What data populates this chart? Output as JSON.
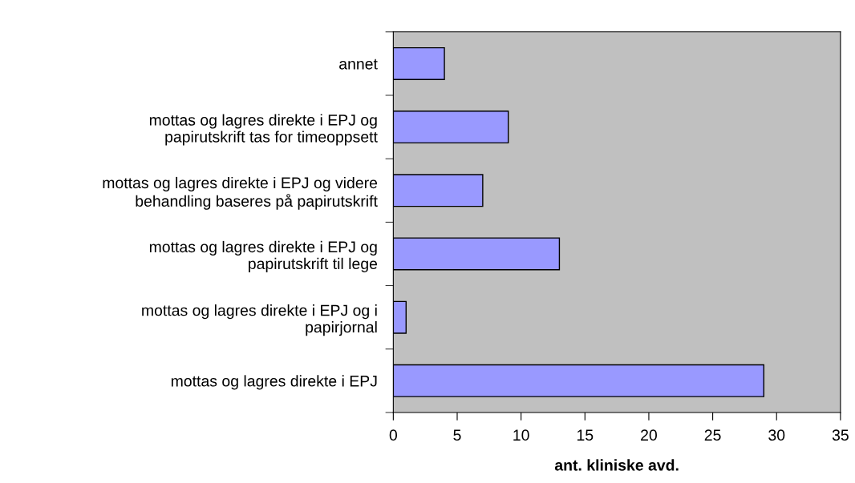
{
  "chart_data": {
    "type": "bar",
    "orientation": "horizontal",
    "xlabel": "ant. kliniske avd.",
    "categories": [
      "annet",
      "mottas og lagres direkte i EPJ og\npapirutskrift tas for timeoppsett",
      "mottas og lagres direkte i EPJ og videre\nbehandling baseres på papirutskrift",
      "mottas og lagres direkte i EPJ og\npapirutskrift til lege",
      "mottas og lagres direkte i EPJ og i\npapirjornal",
      "mottas og lagres direkte i EPJ"
    ],
    "values": [
      4,
      9,
      7,
      13,
      1,
      29
    ],
    "color": "#9999ff",
    "xlim": [
      0,
      35
    ],
    "xticks": [
      0,
      5,
      10,
      15,
      20,
      25,
      30,
      35
    ],
    "grid": false,
    "legend": false
  }
}
